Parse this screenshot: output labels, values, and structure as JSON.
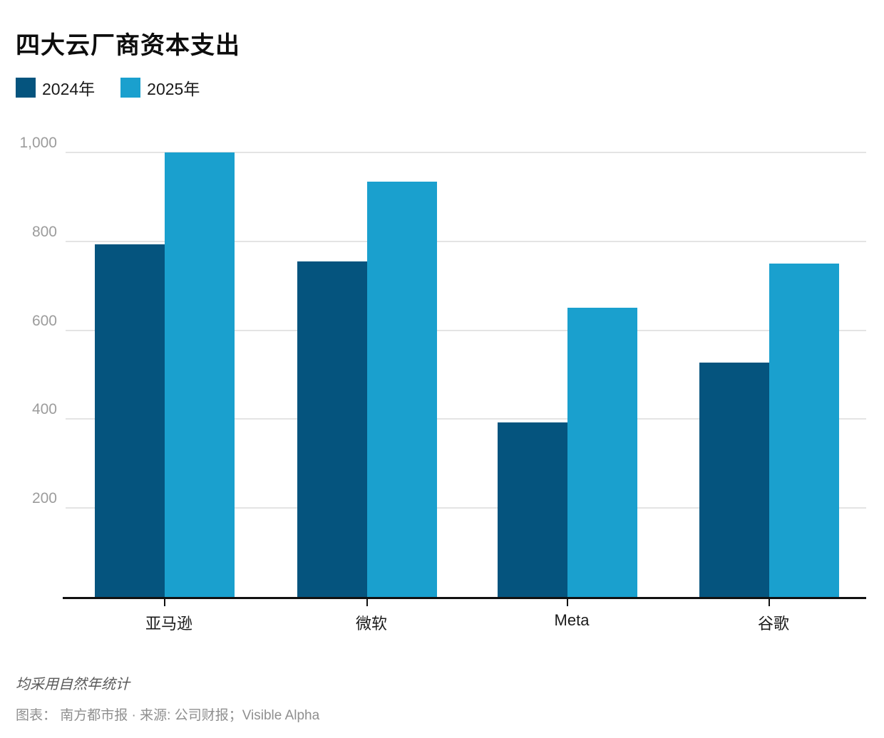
{
  "title": "四大云厂商资本支出",
  "legend": [
    {
      "label": "2024年",
      "color": "#05547e"
    },
    {
      "label": "2025年",
      "color": "#1aa0ce"
    }
  ],
  "chart_data": {
    "type": "bar",
    "title": "四大云厂商资本支出",
    "categories": [
      "亚马逊",
      "微软",
      "Meta",
      "谷歌"
    ],
    "series": [
      {
        "name": "2024年",
        "color": "#05547e",
        "values": [
          793,
          755,
          392,
          527
        ]
      },
      {
        "name": "2025年",
        "color": "#1aa0ce",
        "values": [
          1000,
          935,
          650,
          750
        ]
      }
    ],
    "xlabel": "",
    "ylabel": "",
    "ylim": [
      0,
      1000
    ],
    "yticks": [
      200,
      400,
      600,
      800,
      1000
    ],
    "ytick_labels": [
      "200",
      "400",
      "600",
      "800",
      "1,000"
    ],
    "grid": true,
    "legend_position": "top-left",
    "background": "#ffffff",
    "gridline_color": "#e4e4e4",
    "axis_color": "#111111"
  },
  "footer": {
    "note": "均采用自然年统计",
    "credit": "图表：  南方都市报 · 来源: 公司财报；Visible Alpha"
  }
}
